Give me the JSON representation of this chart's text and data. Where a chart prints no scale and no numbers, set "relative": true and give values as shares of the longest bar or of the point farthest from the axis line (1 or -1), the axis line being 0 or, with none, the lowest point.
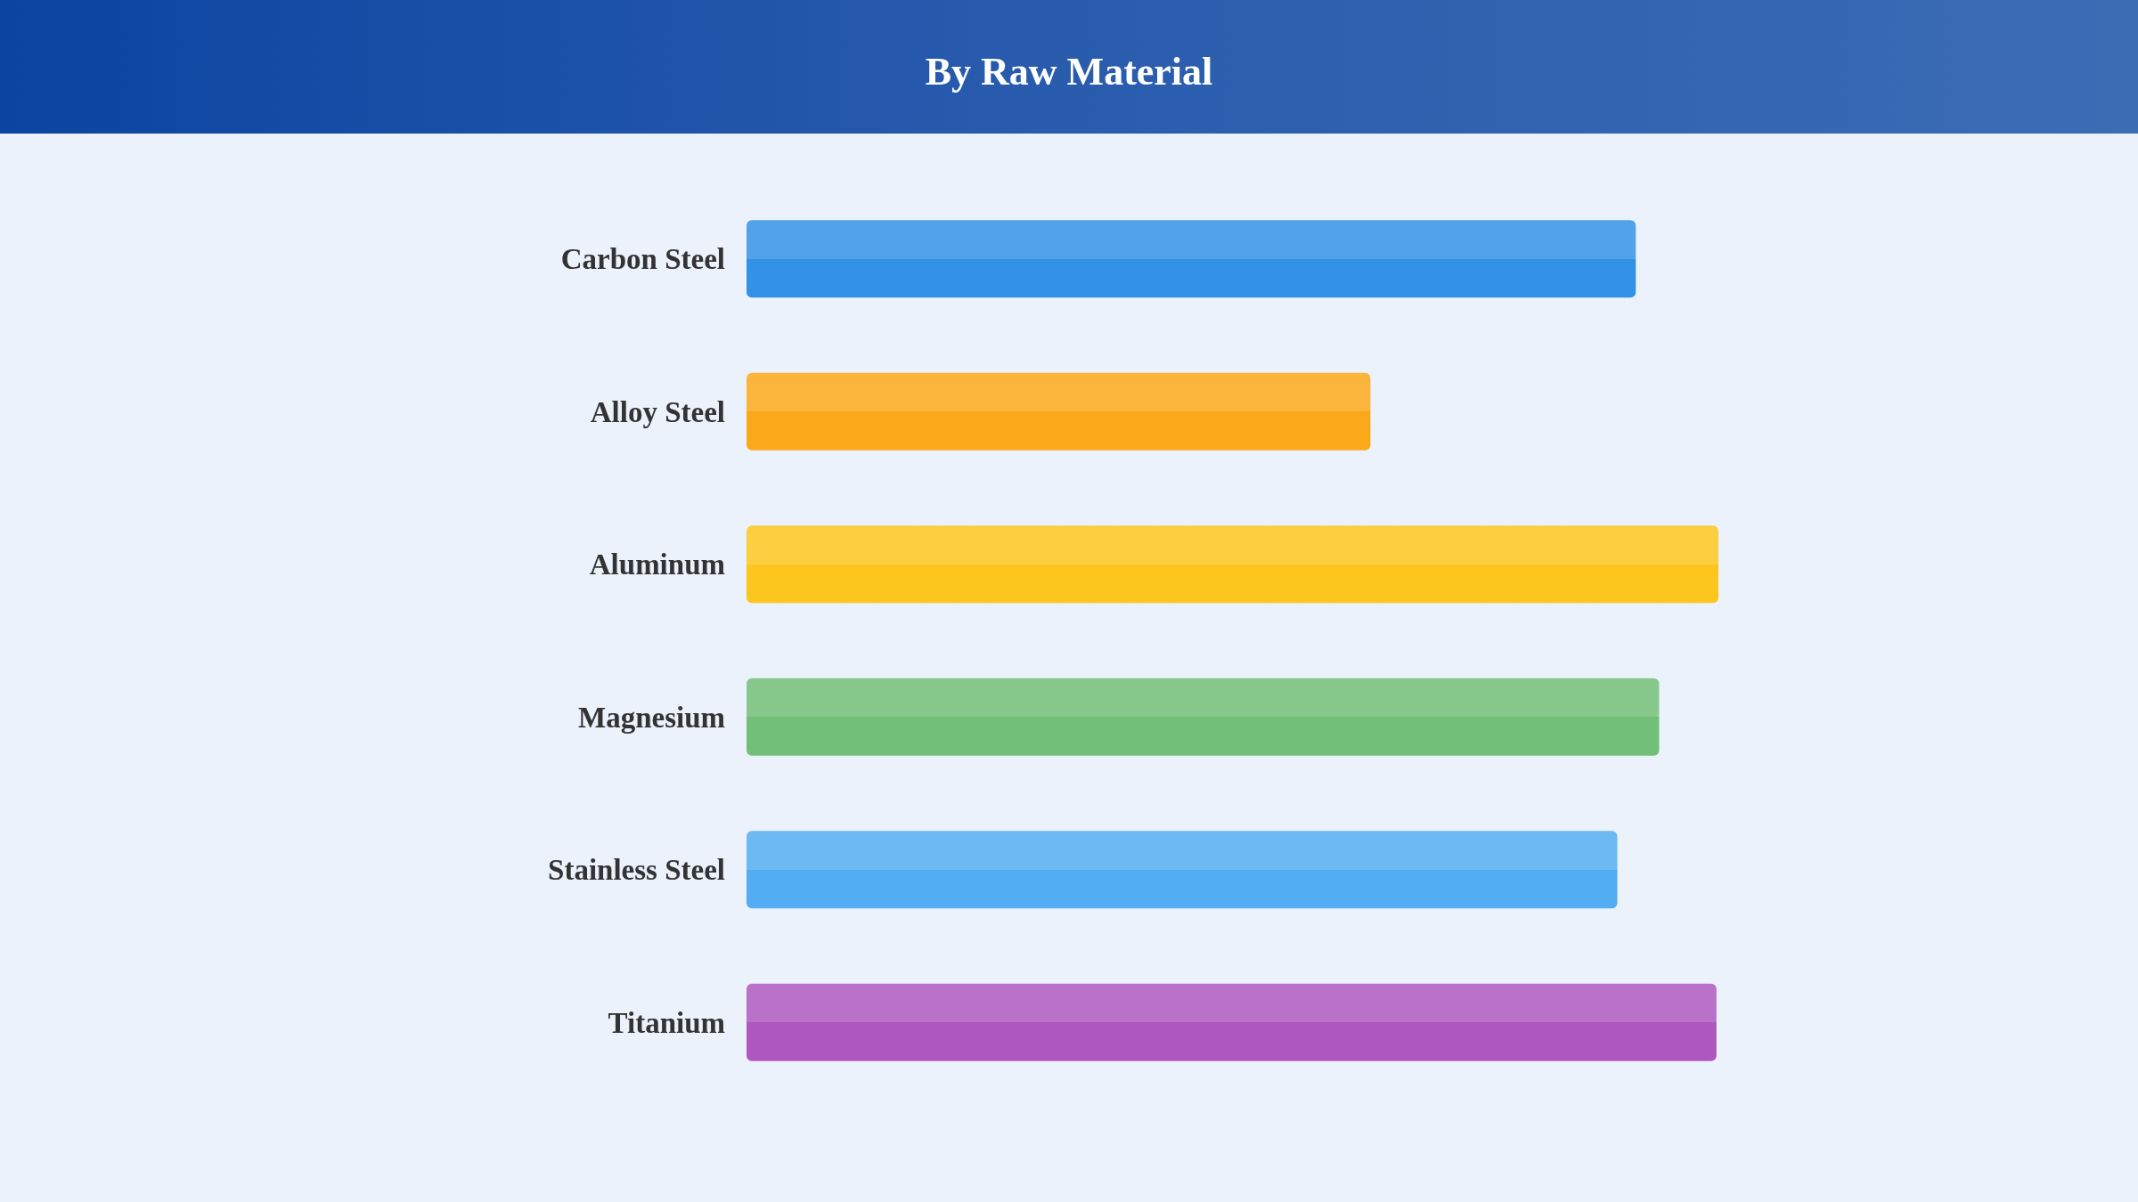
{
  "chart_data": {
    "type": "bar",
    "title": "By Raw Material",
    "orientation": "horizontal",
    "relative": true,
    "categories": [
      "Carbon Steel",
      "Alloy Steel",
      "Aluminum",
      "Magnesium",
      "Stainless Steel",
      "Titanium"
    ],
    "values": [
      0.915,
      0.642,
      1,
      0.939,
      0.896,
      0.998
    ],
    "colors": [
      "#3391e6",
      "#fba81a",
      "#fcc61f",
      "#72bf78",
      "#52adf2",
      "#ae58bf"
    ]
  }
}
